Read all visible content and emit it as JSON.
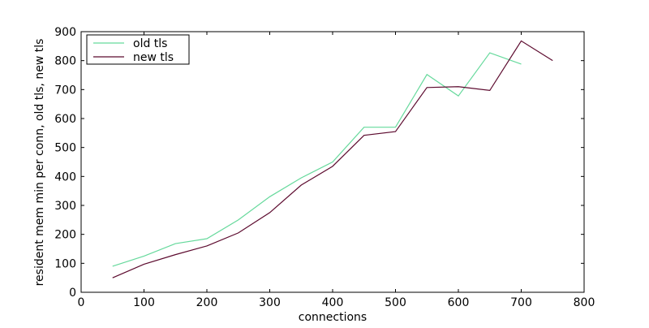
{
  "chart_data": {
    "type": "line",
    "x_label": "connections",
    "y_label": "resident mem min per conn, old tls, new tls",
    "x": [
      50,
      100,
      150,
      200,
      250,
      300,
      350,
      400,
      450,
      500,
      550,
      600,
      650,
      700,
      750
    ],
    "series": [
      {
        "name": "old tls",
        "color": "#66d99c",
        "values": [
          90,
          125,
          168,
          185,
          250,
          330,
          395,
          450,
          570,
          570,
          752,
          678,
          827,
          788,
          null
        ]
      },
      {
        "name": "new tls",
        "color": "#5c0a2e",
        "values": [
          50,
          97,
          130,
          160,
          205,
          275,
          370,
          435,
          542,
          555,
          707,
          710,
          697,
          868,
          800
        ]
      }
    ],
    "xlim": [
      0,
      800
    ],
    "xticks": [
      0,
      100,
      200,
      300,
      400,
      500,
      600,
      700,
      800
    ],
    "ylim": [
      0,
      900
    ],
    "yticks": [
      0,
      100,
      200,
      300,
      400,
      500,
      600,
      700,
      800,
      900
    ],
    "legend": "upper left",
    "grid": false
  }
}
